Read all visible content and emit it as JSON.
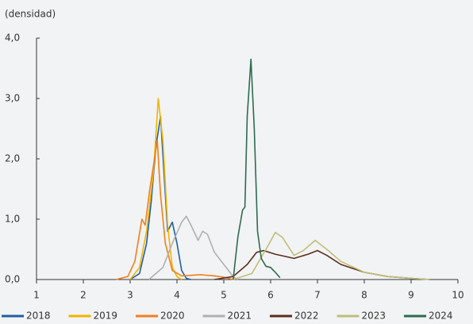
{
  "chart_data": {
    "type": "line",
    "y_axis_label": "(densidad)",
    "xlim": [
      1,
      10
    ],
    "xticks": [
      1,
      2,
      3,
      4,
      5,
      6,
      7,
      8,
      9,
      10
    ],
    "ylim": [
      0,
      4
    ],
    "yticks": [
      {
        "value": 0,
        "label": "0,0"
      },
      {
        "value": 1,
        "label": "1,0"
      },
      {
        "value": 2,
        "label": "2,0"
      },
      {
        "value": 3,
        "label": "3,0"
      },
      {
        "value": 4,
        "label": "4,0"
      }
    ],
    "series": [
      {
        "name": "2018",
        "color": "#1f5fa0",
        "x": [
          3.0,
          3.2,
          3.35,
          3.45,
          3.55,
          3.65,
          3.72,
          3.8,
          3.9,
          4.0,
          4.1,
          4.2,
          4.3
        ],
        "values": [
          0,
          0.1,
          0.6,
          1.3,
          2.2,
          2.7,
          1.8,
          0.8,
          0.95,
          0.6,
          0.15,
          0.02,
          0
        ]
      },
      {
        "name": "2019",
        "color": "#f0b400",
        "x": [
          3.0,
          3.2,
          3.35,
          3.5,
          3.6,
          3.7,
          3.8,
          3.9,
          4.0,
          4.1
        ],
        "values": [
          0,
          0.2,
          0.8,
          1.8,
          3.0,
          2.3,
          0.9,
          0.2,
          0.05,
          0
        ]
      },
      {
        "name": "2020",
        "color": "#f07f1e",
        "x": [
          2.7,
          2.95,
          3.1,
          3.25,
          3.32,
          3.42,
          3.52,
          3.58,
          3.65,
          3.75,
          3.9,
          4.1,
          4.5,
          4.8,
          5.0,
          5.2
        ],
        "values": [
          0,
          0.05,
          0.3,
          1.0,
          0.9,
          1.5,
          2.0,
          2.3,
          1.4,
          0.6,
          0.15,
          0.06,
          0.08,
          0.06,
          0.04,
          0
        ]
      },
      {
        "name": "2021",
        "color": "#b0b0b0",
        "x": [
          3.4,
          3.7,
          3.9,
          4.1,
          4.2,
          4.3,
          4.45,
          4.55,
          4.65,
          4.8,
          5.0,
          5.2,
          5.3
        ],
        "values": [
          0,
          0.2,
          0.6,
          0.95,
          1.05,
          0.9,
          0.65,
          0.8,
          0.75,
          0.45,
          0.25,
          0.05,
          0
        ]
      },
      {
        "name": "2022",
        "color": "#5a2e1e",
        "x": [
          4.8,
          5.2,
          5.5,
          5.7,
          5.85,
          6.1,
          6.5,
          6.8,
          7.0,
          7.2,
          7.5,
          8.0,
          8.5,
          9.0,
          9.4
        ],
        "values": [
          0,
          0.05,
          0.25,
          0.45,
          0.48,
          0.42,
          0.35,
          0.42,
          0.48,
          0.4,
          0.25,
          0.12,
          0.05,
          0.02,
          0
        ]
      },
      {
        "name": "2023",
        "color": "#bfbf7a",
        "x": [
          5.2,
          5.6,
          5.9,
          6.1,
          6.25,
          6.5,
          6.7,
          6.95,
          7.2,
          7.5,
          8.0,
          8.5,
          9.0,
          9.4
        ],
        "values": [
          0,
          0.1,
          0.5,
          0.78,
          0.7,
          0.4,
          0.48,
          0.65,
          0.5,
          0.3,
          0.12,
          0.05,
          0.02,
          0
        ]
      },
      {
        "name": "2024",
        "color": "#2e6b50",
        "x": [
          5.2,
          5.3,
          5.4,
          5.45,
          5.5,
          5.58,
          5.65,
          5.72,
          5.8,
          5.9,
          6.0,
          6.1,
          6.2
        ],
        "values": [
          0,
          0.7,
          1.15,
          1.2,
          2.7,
          3.65,
          2.5,
          0.8,
          0.35,
          0.22,
          0.2,
          0.12,
          0.03
        ]
      }
    ]
  }
}
